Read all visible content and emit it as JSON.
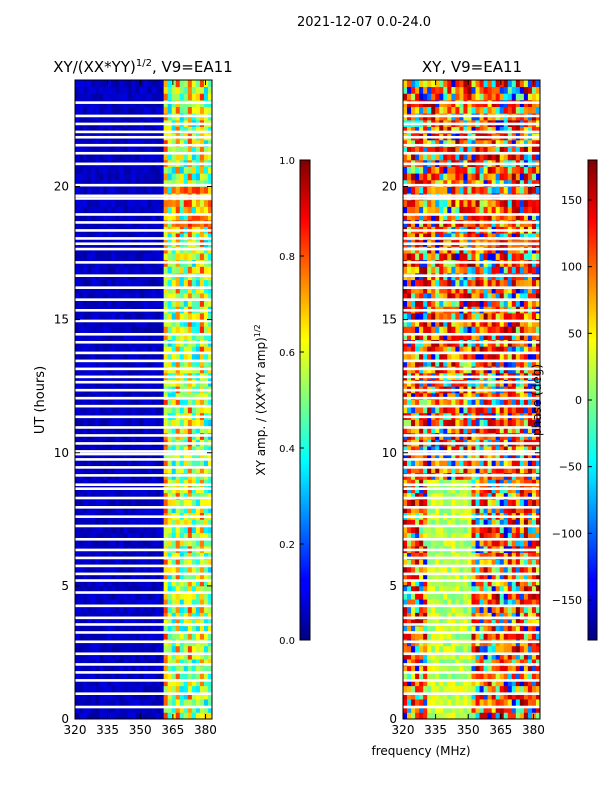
{
  "figure": {
    "suptitle": "2021-12-07 0.0-24.0",
    "shared_xlabel": "frequency (MHz)"
  },
  "chart_data": [
    {
      "type": "heatmap",
      "title": "XY/(XX*YY)1/2, V9=EA11",
      "title_base": "XY/(XX*YY)",
      "title_sup": "1/2",
      "title_rest": ", V9=EA11",
      "xlabel": "",
      "ylabel": "UT (hours)",
      "xlim": [
        320,
        383
      ],
      "ylim": [
        0,
        24
      ],
      "x_ticks": [
        320,
        335,
        350,
        365,
        380
      ],
      "y_ticks": [
        0,
        5,
        10,
        15,
        20
      ],
      "colorbar": {
        "label": "XY amp. / (XX*YY amp)1/2",
        "label_base": "XY amp. / (XX*YY amp)",
        "label_sup": "1/2",
        "range": [
          0.0,
          1.0
        ],
        "ticks": [
          "0.0",
          "0.2",
          "0.4",
          "0.6",
          "0.8",
          "1.0"
        ],
        "colormap": "jet"
      },
      "notes": "low amplitude (0-0.1) below 361 MHz; bright striped band 361-383 MHz (0.3-0.9); white gaps = flagged times"
    },
    {
      "type": "heatmap",
      "title": "XY, V9=EA11",
      "xlabel": "",
      "ylabel": "",
      "xlim": [
        320,
        383
      ],
      "ylim": [
        0,
        24
      ],
      "x_ticks": [
        320,
        335,
        350,
        365,
        380
      ],
      "y_ticks": [
        0,
        5,
        10,
        15,
        20
      ],
      "colorbar": {
        "label": "phase (deg)",
        "range": [
          -180,
          180
        ],
        "ticks": [
          "150",
          "100",
          "50",
          "0",
          "−50",
          "−100",
          "−150"
        ],
        "colormap": "jet"
      },
      "notes": "phase roughly 0 to 50 deg near 335-350 MHz at 1-9 h, varied elsewhere; white gaps = flagged times"
    }
  ],
  "flagged_ut_hours": [
    0.45,
    0.95,
    1.45,
    1.75,
    2.05,
    2.45,
    2.9,
    3.25,
    3.55,
    3.8,
    4.25,
    4.75,
    5.2,
    5.45,
    5.75,
    6.05,
    6.35,
    6.75,
    7.25,
    7.6,
    7.95,
    8.3,
    8.65,
    8.8,
    9.15,
    9.45,
    9.75,
    9.95,
    10.05,
    10.35,
    10.65,
    10.95,
    11.35,
    11.75,
    12.05,
    12.35,
    12.65,
    12.85,
    13.15,
    13.45,
    13.75,
    14.15,
    14.45,
    14.95,
    15.35,
    15.75,
    16.2,
    16.65,
    17.15,
    17.65,
    17.85,
    18.05,
    18.35,
    18.65,
    18.95,
    19.55,
    19.65,
    20.05,
    20.85,
    21.25,
    21.55,
    21.85,
    22.05,
    22.35,
    22.65,
    23.15
  ]
}
